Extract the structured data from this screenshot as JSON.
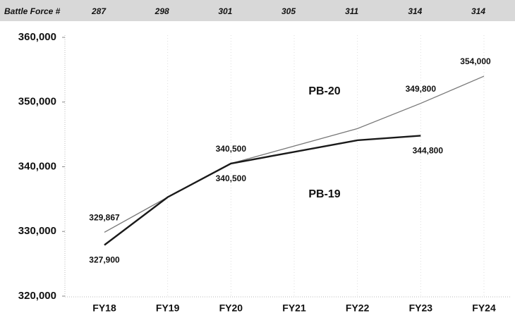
{
  "chart_data": {
    "type": "line",
    "categories": [
      "FY18",
      "FY19",
      "FY20",
      "FY21",
      "FY22",
      "FY23",
      "FY24"
    ],
    "battle_force": {
      "label": "Battle Force #",
      "values": [
        287,
        298,
        301,
        305,
        311,
        314,
        314
      ]
    },
    "series": [
      {
        "name": "PB-20",
        "color": "#777777",
        "values": [
          329867,
          335300,
          340500,
          343200,
          345900,
          349800,
          354000
        ],
        "value_labels": [
          "329,867",
          null,
          "340,500",
          null,
          null,
          "349,800",
          "354,000"
        ]
      },
      {
        "name": "PB-19",
        "color": "#1a1a1a",
        "values": [
          327900,
          335300,
          340500,
          342300,
          344100,
          344800,
          null
        ],
        "value_labels": [
          "327,900",
          null,
          "340,500",
          null,
          null,
          "344,800",
          null
        ]
      }
    ],
    "ylim": [
      320000,
      360000
    ],
    "yticks": [
      {
        "value": 320000,
        "label": "320,000"
      },
      {
        "value": 330000,
        "label": "330,000"
      },
      {
        "value": 340000,
        "label": "340,000"
      },
      {
        "value": 350000,
        "label": "350,000"
      },
      {
        "value": 360000,
        "label": "360,000"
      }
    ]
  }
}
